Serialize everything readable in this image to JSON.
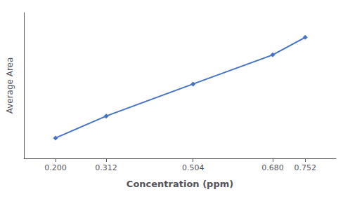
{
  "chart_data": {
    "type": "line",
    "x": [
      0.2,
      0.312,
      0.504,
      0.68,
      0.752
    ],
    "values": [
      1.0,
      1.75,
      2.85,
      3.85,
      4.45
    ],
    "color": "#4472C4",
    "marker": "diamond",
    "xlabel": "Concentration (ppm)",
    "ylabel": "Average Area",
    "xlim": [
      0.13,
      0.82
    ],
    "xticks": [
      {
        "value": 0.2,
        "label": "0.200"
      },
      {
        "value": 0.312,
        "label": "0.312"
      },
      {
        "value": 0.504,
        "label": "0.504"
      },
      {
        "value": 0.68,
        "label": "0.680"
      },
      {
        "value": 0.752,
        "label": "0.752"
      }
    ],
    "ylim": [
      0.3,
      5.3
    ],
    "tick_labels": "x",
    "grid": false
  }
}
